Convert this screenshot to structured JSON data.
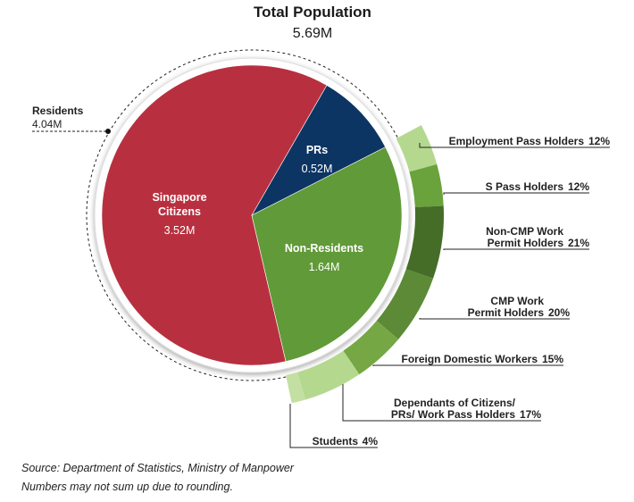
{
  "chart_data": {
    "type": "pie",
    "title": "Total Population",
    "subtitle": "5.69M",
    "main_pie": [
      {
        "label": "Singapore Citizens",
        "label_lines": [
          "Singapore",
          "Citizens"
        ],
        "value_label": "3.52M",
        "value": 3.52,
        "color": "#b83040"
      },
      {
        "label": "PRs",
        "label_lines": [
          "PRs"
        ],
        "value_label": "0.52M",
        "value": 0.52,
        "color": "#0d3563"
      },
      {
        "label": "Non-Residents",
        "label_lines": [
          "Non-Residents"
        ],
        "value_label": "1.64M",
        "value": 1.64,
        "color": "#619a38"
      }
    ],
    "residents_annotation": {
      "label": "Residents",
      "value_label": "4.04M",
      "value": 4.04
    },
    "non_resident_breakdown": [
      {
        "label_lines": [
          "Employment Pass Holders"
        ],
        "pct_label": "12%",
        "value": 12,
        "color": "#b5d88f"
      },
      {
        "label_lines": [
          "S Pass Holders"
        ],
        "pct_label": "12%",
        "value": 12,
        "color": "#6aa23c"
      },
      {
        "label_lines": [
          "Non-CMP Work",
          "Permit Holders"
        ],
        "pct_label": "21%",
        "value": 21,
        "color": "#456d28"
      },
      {
        "label_lines": [
          "CMP Work",
          "Permit Holders"
        ],
        "pct_label": "20%",
        "value": 20,
        "color": "#5c8a36"
      },
      {
        "label_lines": [
          "Foreign Domestic Workers"
        ],
        "pct_label": "15%",
        "value": 15,
        "color": "#75a745"
      },
      {
        "label_lines": [
          "Dependants of Citizens/",
          "PRs/ Work Pass Holders"
        ],
        "pct_label": "17%",
        "value": 17,
        "color": "#b5d88f"
      },
      {
        "label_lines": [
          "Students"
        ],
        "pct_label": "4%",
        "value": 4,
        "color": "#c3e0a2"
      }
    ]
  },
  "footnotes": {
    "source": "Source: Department of Statistics, Ministry of Manpower",
    "rounding": "Numbers may not sum up due to rounding."
  }
}
